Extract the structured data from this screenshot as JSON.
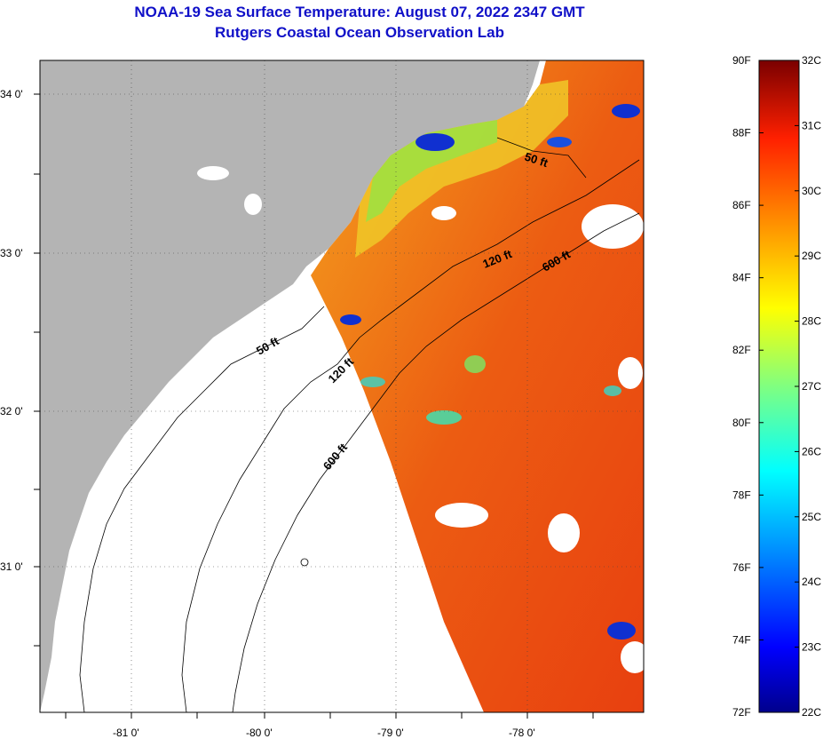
{
  "title": {
    "line1": "NOAA-19 Sea Surface Temperature:  August 07, 2022 2347 GMT",
    "line2": "Rutgers Coastal Ocean Observation Lab"
  },
  "map": {
    "lat_labels": [
      "34 0'",
      "33 0'",
      "32 0'",
      "31 0'"
    ],
    "lon_labels": [
      "-81 0'",
      "-80 0'",
      "-79 0'",
      "-78 0'"
    ],
    "contours": [
      {
        "label": "50 ft",
        "depth": 50
      },
      {
        "label": "120 ft",
        "depth": 120
      },
      {
        "label": "600 ft",
        "depth": 600
      },
      {
        "label": "50 ft",
        "depth": 50
      },
      {
        "label": "120 ft",
        "depth": 120
      },
      {
        "label": "600 ft",
        "depth": 600
      }
    ],
    "colors": {
      "land": "#b4b4b4",
      "nodata": "#ffffff",
      "ocean_dominant": "#ee5a10"
    }
  },
  "colorbar": {
    "fahrenheit": [
      "90F",
      "88F",
      "86F",
      "84F",
      "82F",
      "80F",
      "78F",
      "76F",
      "74F",
      "72F"
    ],
    "celsius": [
      "32C",
      "31C",
      "30C",
      "29C",
      "28C",
      "27C",
      "26C",
      "25C",
      "24C",
      "23C",
      "22C"
    ],
    "range_c": [
      22,
      32
    ],
    "range_f": [
      72,
      90
    ]
  }
}
